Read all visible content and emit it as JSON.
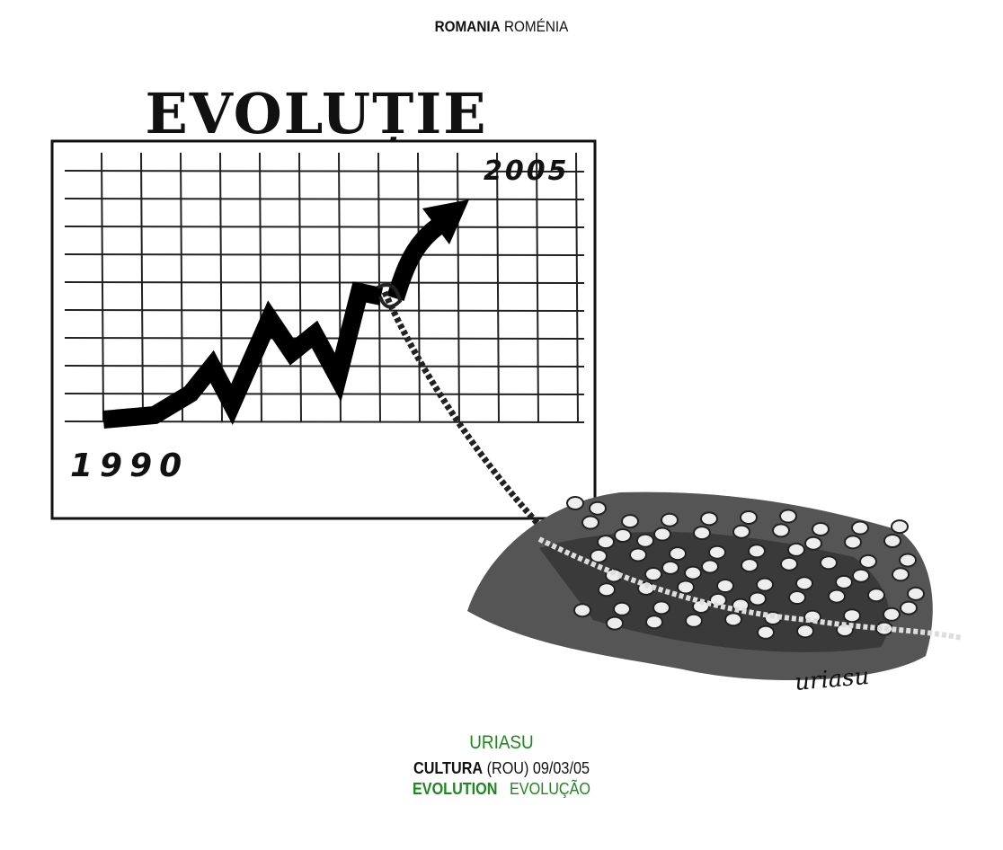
{
  "header": {
    "country": "ROMANIA",
    "country_pt": "ROMÉNIA"
  },
  "cartoon": {
    "title": "EVOLUȚIE",
    "year_start": "1990",
    "year_end": "2005",
    "signature": "uriasu"
  },
  "caption": {
    "author": "URIASU",
    "publication": "CULTURA",
    "publication_info": "(ROU) 09/03/05",
    "title_en": "EVOLUTION",
    "title_pt": "EVOLUÇÃO"
  },
  "colors": {
    "accent": "#1a8a1a",
    "text": "#111111"
  }
}
